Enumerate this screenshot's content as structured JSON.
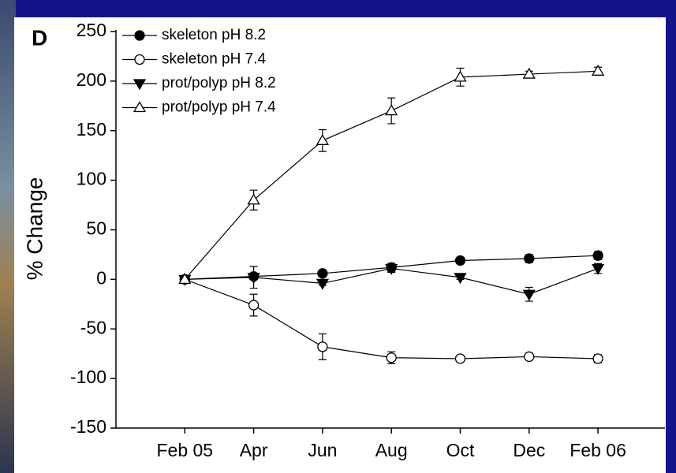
{
  "chart_data": {
    "type": "line",
    "panel_label": "D",
    "ylabel": "% Change",
    "categories": [
      "Feb 05",
      "Apr",
      "Jun",
      "Aug",
      "Oct",
      "Dec",
      "Feb 06"
    ],
    "ylim": [
      -150,
      250
    ],
    "yticks": [
      -150,
      -100,
      -50,
      0,
      50,
      100,
      150,
      200,
      250
    ],
    "legend": "upper left",
    "series": [
      {
        "name": "skeleton pH 8.2",
        "color": "#000000",
        "marker": "circle",
        "filled": true,
        "values": [
          0,
          3,
          6,
          12,
          19,
          21,
          24
        ],
        "errors": [
          0,
          3,
          2,
          4,
          3,
          4,
          4
        ]
      },
      {
        "name": "skeleton pH 7.4",
        "color": "#000000",
        "marker": "circle",
        "filled": false,
        "values": [
          0,
          -26,
          -68,
          -79,
          -80,
          -78,
          -80
        ],
        "errors": [
          0,
          11,
          13,
          6,
          3,
          3,
          4
        ]
      },
      {
        "name": "prot/polyp pH 8.2",
        "color": "#000000",
        "marker": "triangle-down",
        "filled": true,
        "values": [
          0,
          2,
          -4,
          11,
          2,
          -15,
          11
        ],
        "errors": [
          0,
          11,
          2,
          4,
          2,
          7,
          5
        ]
      },
      {
        "name": "prot/polyp pH 7.4",
        "color": "#000000",
        "marker": "triangle-up",
        "filled": false,
        "values": [
          0,
          80,
          140,
          170,
          204,
          207,
          210
        ],
        "errors": [
          0,
          10,
          11,
          13,
          9,
          3,
          4
        ]
      }
    ]
  }
}
